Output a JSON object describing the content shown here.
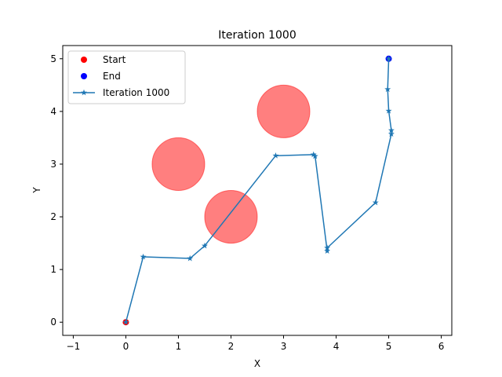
{
  "chart_data": {
    "type": "line",
    "title": "Iteration 1000",
    "xlabel": "X",
    "ylabel": "Y",
    "xlim": [
      -1.2,
      6.2
    ],
    "ylim": [
      -0.25,
      5.25
    ],
    "xticks": [
      -1,
      0,
      1,
      2,
      3,
      4,
      5,
      6
    ],
    "yticks": [
      0,
      1,
      2,
      3,
      4,
      5
    ],
    "grid": false,
    "legend_position": "upper left",
    "obstacles": [
      {
        "cx": 1,
        "cy": 3,
        "r": 0.5,
        "color": "#ff7f7f"
      },
      {
        "cx": 2,
        "cy": 2,
        "r": 0.5,
        "color": "#ff7f7f"
      },
      {
        "cx": 3,
        "cy": 4,
        "r": 0.5,
        "color": "#ff7f7f"
      }
    ],
    "start": {
      "label": "Start",
      "x": 0,
      "y": 0,
      "color": "#ff0000"
    },
    "end": {
      "label": "End",
      "x": 5,
      "y": 5,
      "color": "#0000ff"
    },
    "series": [
      {
        "name": "Iteration 1000",
        "color": "#1f77b4",
        "marker": "star",
        "x": [
          0.0,
          0.33,
          1.22,
          1.5,
          2.85,
          3.57,
          3.6,
          3.83,
          3.83,
          4.75,
          5.05,
          5.05,
          5.0,
          4.98,
          5.0
        ],
        "y": [
          0.0,
          1.24,
          1.21,
          1.45,
          3.16,
          3.18,
          3.15,
          1.35,
          1.41,
          2.27,
          3.57,
          3.64,
          4.01,
          4.42,
          5.0
        ]
      }
    ]
  }
}
